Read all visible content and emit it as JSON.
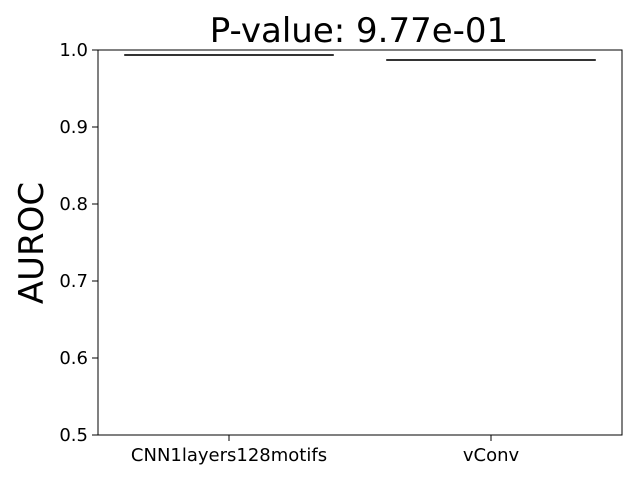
{
  "chart_data": {
    "type": "box",
    "title": "P-value: 9.77e-01",
    "xlabel": "",
    "ylabel": "AUROC",
    "ylim": [
      0.5,
      1.0
    ],
    "yticks": [
      "0.5",
      "0.6",
      "0.7",
      "0.8",
      "0.9",
      "1.0"
    ],
    "categories": [
      "CNN1layers128motifs",
      "vConv"
    ],
    "series": [
      {
        "values": [
          0.9935,
          0.987
        ]
      }
    ],
    "grid": false,
    "colors": {
      "box_line": "#333333",
      "axis": "#000000"
    }
  }
}
